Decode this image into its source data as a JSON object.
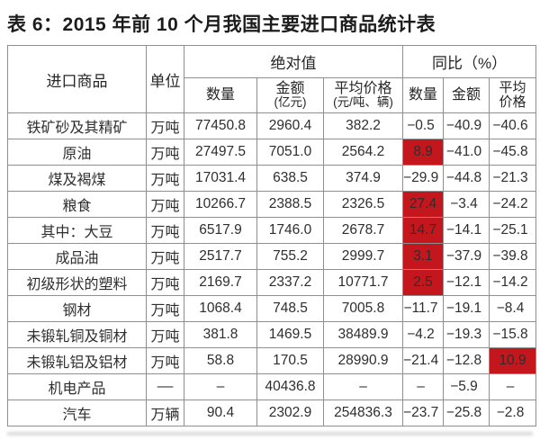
{
  "title": "表 6：2015 年前 10 个月我国主要进口商品统计表",
  "colors": {
    "highlight_red": "#c4161d",
    "border_gray": "#8f8f8f",
    "text_dark": "#2e2e2e"
  },
  "table": {
    "header": {
      "commodity": "进口商品",
      "unit": "单位",
      "absolute_group": "绝对值",
      "yoy_group": "同比（%）",
      "abs_quantity": "数量",
      "abs_amount_l1": "金额",
      "abs_amount_l2": "(亿元)",
      "abs_price_l1": "平均价格",
      "abs_price_l2": "(元/吨、辆)",
      "yoy_quantity": "数量",
      "yoy_amount": "金额",
      "yoy_price_l1": "平均",
      "yoy_price_l2": "价格"
    },
    "rows": [
      {
        "name": "铁矿砂及其精矿",
        "unit": "万吨",
        "qty": "77450.8",
        "amt": "2960.4",
        "price": "382.2",
        "yoy_qty": "−0.5",
        "yoy_amt": "−40.9",
        "yoy_price": "−40.6",
        "highlight": []
      },
      {
        "name": "原油",
        "unit": "万吨",
        "qty": "27497.5",
        "amt": "7051.0",
        "price": "2564.2",
        "yoy_qty": "8.9",
        "yoy_amt": "−41.0",
        "yoy_price": "−45.8",
        "highlight": [
          "yoy_qty"
        ]
      },
      {
        "name": "煤及褐煤",
        "unit": "万吨",
        "qty": "17031.4",
        "amt": "638.5",
        "price": "374.9",
        "yoy_qty": "−29.9",
        "yoy_amt": "−44.8",
        "yoy_price": "−21.3",
        "highlight": []
      },
      {
        "name": "粮食",
        "unit": "万吨",
        "qty": "10266.7",
        "amt": "2388.5",
        "price": "2326.5",
        "yoy_qty": "27.4",
        "yoy_amt": "−3.4",
        "yoy_price": "−24.2",
        "highlight": [
          "yoy_qty"
        ]
      },
      {
        "name": "其中：大豆",
        "unit": "万吨",
        "qty": "6517.9",
        "amt": "1746.0",
        "price": "2678.7",
        "yoy_qty": "14.7",
        "yoy_amt": "−14.1",
        "yoy_price": "−25.1",
        "highlight": [
          "yoy_qty"
        ]
      },
      {
        "name": "成品油",
        "unit": "万吨",
        "qty": "2517.7",
        "amt": "755.2",
        "price": "2999.7",
        "yoy_qty": "3.1",
        "yoy_amt": "−37.9",
        "yoy_price": "−39.8",
        "highlight": [
          "yoy_qty"
        ]
      },
      {
        "name": "初级形状的塑料",
        "unit": "万吨",
        "qty": "2169.7",
        "amt": "2337.2",
        "price": "10771.7",
        "yoy_qty": "2.5",
        "yoy_amt": "−12.1",
        "yoy_price": "−14.2",
        "highlight": [
          "yoy_qty"
        ]
      },
      {
        "name": "钢材",
        "unit": "万吨",
        "qty": "1068.4",
        "amt": "748.5",
        "price": "7005.8",
        "yoy_qty": "−11.7",
        "yoy_amt": "−19.1",
        "yoy_price": "−8.4",
        "highlight": []
      },
      {
        "name": "未锻轧铜及铜材",
        "unit": "万吨",
        "qty": "381.8",
        "amt": "1469.5",
        "price": "38489.9",
        "yoy_qty": "−4.2",
        "yoy_amt": "−19.3",
        "yoy_price": "−15.8",
        "highlight": []
      },
      {
        "name": "未锻轧铝及铝材",
        "unit": "万吨",
        "qty": "58.8",
        "amt": "170.5",
        "price": "28990.9",
        "yoy_qty": "−21.4",
        "yoy_amt": "−12.8",
        "yoy_price": "10.9",
        "highlight": [
          "yoy_price"
        ]
      },
      {
        "name": "机电产品",
        "unit": "––",
        "qty": "–",
        "amt": "40436.8",
        "price": "–",
        "yoy_qty": "–",
        "yoy_amt": "−5.9",
        "yoy_price": "–",
        "highlight": []
      },
      {
        "name": "汽车",
        "unit": "万辆",
        "qty": "90.4",
        "amt": "2302.9",
        "price": "254836.3",
        "yoy_qty": "−23.7",
        "yoy_amt": "−25.8",
        "yoy_price": "−2.8",
        "highlight": []
      }
    ]
  }
}
